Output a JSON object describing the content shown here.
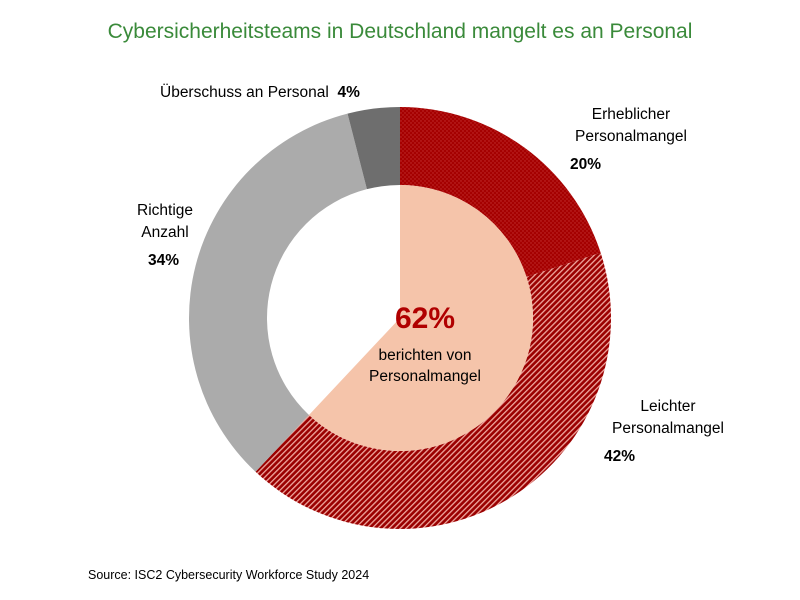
{
  "chart_data": {
    "type": "pie",
    "variant": "donut",
    "title": "Cybersicherheitsteams in Deutschland mangelt es an Personal",
    "slices": [
      {
        "label": "Erheblicher Personalmangel",
        "value": 20,
        "display": "20%",
        "color": "#a50000",
        "pattern": "dotted"
      },
      {
        "label": "Leichter Personalmangel",
        "value": 42,
        "display": "42%",
        "color": "#a50000",
        "pattern": "diagonal-hatch"
      },
      {
        "label": "Richtige Anzahl",
        "value": 34,
        "display": "34%",
        "color": "#ababab",
        "pattern": "solid"
      },
      {
        "label": "Überschuss an Personal",
        "value": 4,
        "display": "4%",
        "color": "#6e6e6e",
        "pattern": "solid"
      }
    ],
    "center": {
      "value": "62%",
      "text": "berichten von Personalmangel",
      "highlight_color": "#f5c4aa",
      "value_color": "#b00000"
    },
    "source": "Source: ISC2 Cybersecurity Workforce Study 2024"
  }
}
